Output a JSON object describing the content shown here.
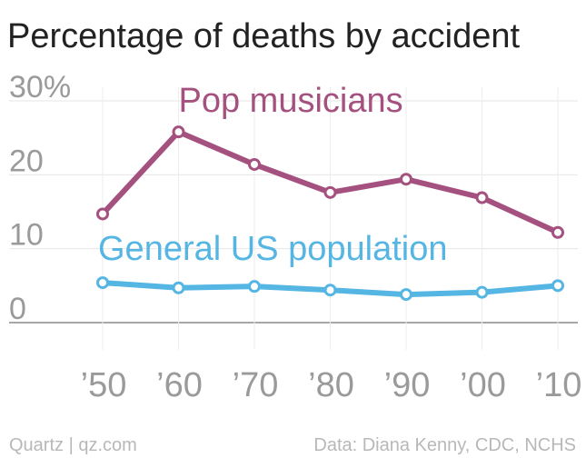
{
  "chart_data": {
    "type": "line",
    "title": "Percentage of deaths by accident",
    "xlabel": "",
    "ylabel": "",
    "categories": [
      "’50",
      "’60",
      "’70",
      "’80",
      "’90",
      "’00",
      "’10"
    ],
    "ylim": [
      0,
      30
    ],
    "yticks": [
      {
        "value": 0,
        "label": "0"
      },
      {
        "value": 10,
        "label": "10"
      },
      {
        "value": 20,
        "label": "20"
      },
      {
        "value": 30,
        "label": "30%"
      }
    ],
    "grid": true,
    "series": [
      {
        "name": "Pop musicians",
        "color": "#a5517f",
        "label_at": [
          1.0,
          28.5
        ],
        "values": [
          14.7,
          25.8,
          21.4,
          17.6,
          19.4,
          16.9,
          12.2
        ]
      },
      {
        "name": "General US population",
        "color": "#55b5e3",
        "label_at": [
          0,
          8.5
        ],
        "values": [
          5.4,
          4.7,
          4.9,
          4.4,
          3.8,
          4.1,
          5.0
        ]
      }
    ]
  },
  "footer": {
    "left": "Quartz | qz.com",
    "right": "Data: Diana Kenny, CDC, NCHS"
  }
}
